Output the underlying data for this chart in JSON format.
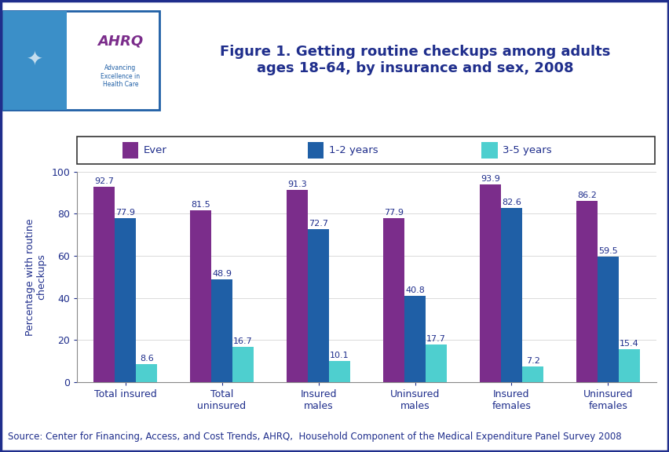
{
  "title": "Figure 1. Getting routine checkups among adults\nages 18–64, by insurance and sex, 2008",
  "ylabel": "Percentage with routine\ncheckups",
  "source": "Source: Center for Financing, Access, and Cost Trends, AHRQ,  Household Component of the Medical Expenditure Panel Survey 2008",
  "categories": [
    "Total insured",
    "Total\nuninsured",
    "Insured\nmales",
    "Uninsured\nmales",
    "Insured\nfemales",
    "Uninsured\nfemales"
  ],
  "series": {
    "Ever": [
      92.7,
      81.5,
      91.3,
      77.9,
      93.9,
      86.2
    ],
    "1-2 years": [
      77.9,
      48.9,
      72.7,
      40.8,
      82.6,
      59.5
    ],
    "3-5 years": [
      8.6,
      16.7,
      10.1,
      17.7,
      7.2,
      15.4
    ]
  },
  "colors": {
    "Ever": "#7B2D8B",
    "1-2 years": "#1F5FA6",
    "3-5 years": "#4ECFCF"
  },
  "ylim": [
    0,
    100
  ],
  "yticks": [
    0,
    20,
    40,
    60,
    80,
    100
  ],
  "bar_width": 0.22,
  "title_color": "#1F2E8C",
  "title_fontsize": 13,
  "axis_label_color": "#1F2E8C",
  "tick_color": "#1F2E8C",
  "source_fontsize": 8.5,
  "value_fontsize": 8.0,
  "legend_fontsize": 9.5,
  "background_color": "#FFFFFF",
  "header_bar_color": "#1F2E8C",
  "logo_blue_bg": "#3B8FC8",
  "logo_white_bg": "#FFFFFF",
  "logo_border_color": "#1F5FA6"
}
